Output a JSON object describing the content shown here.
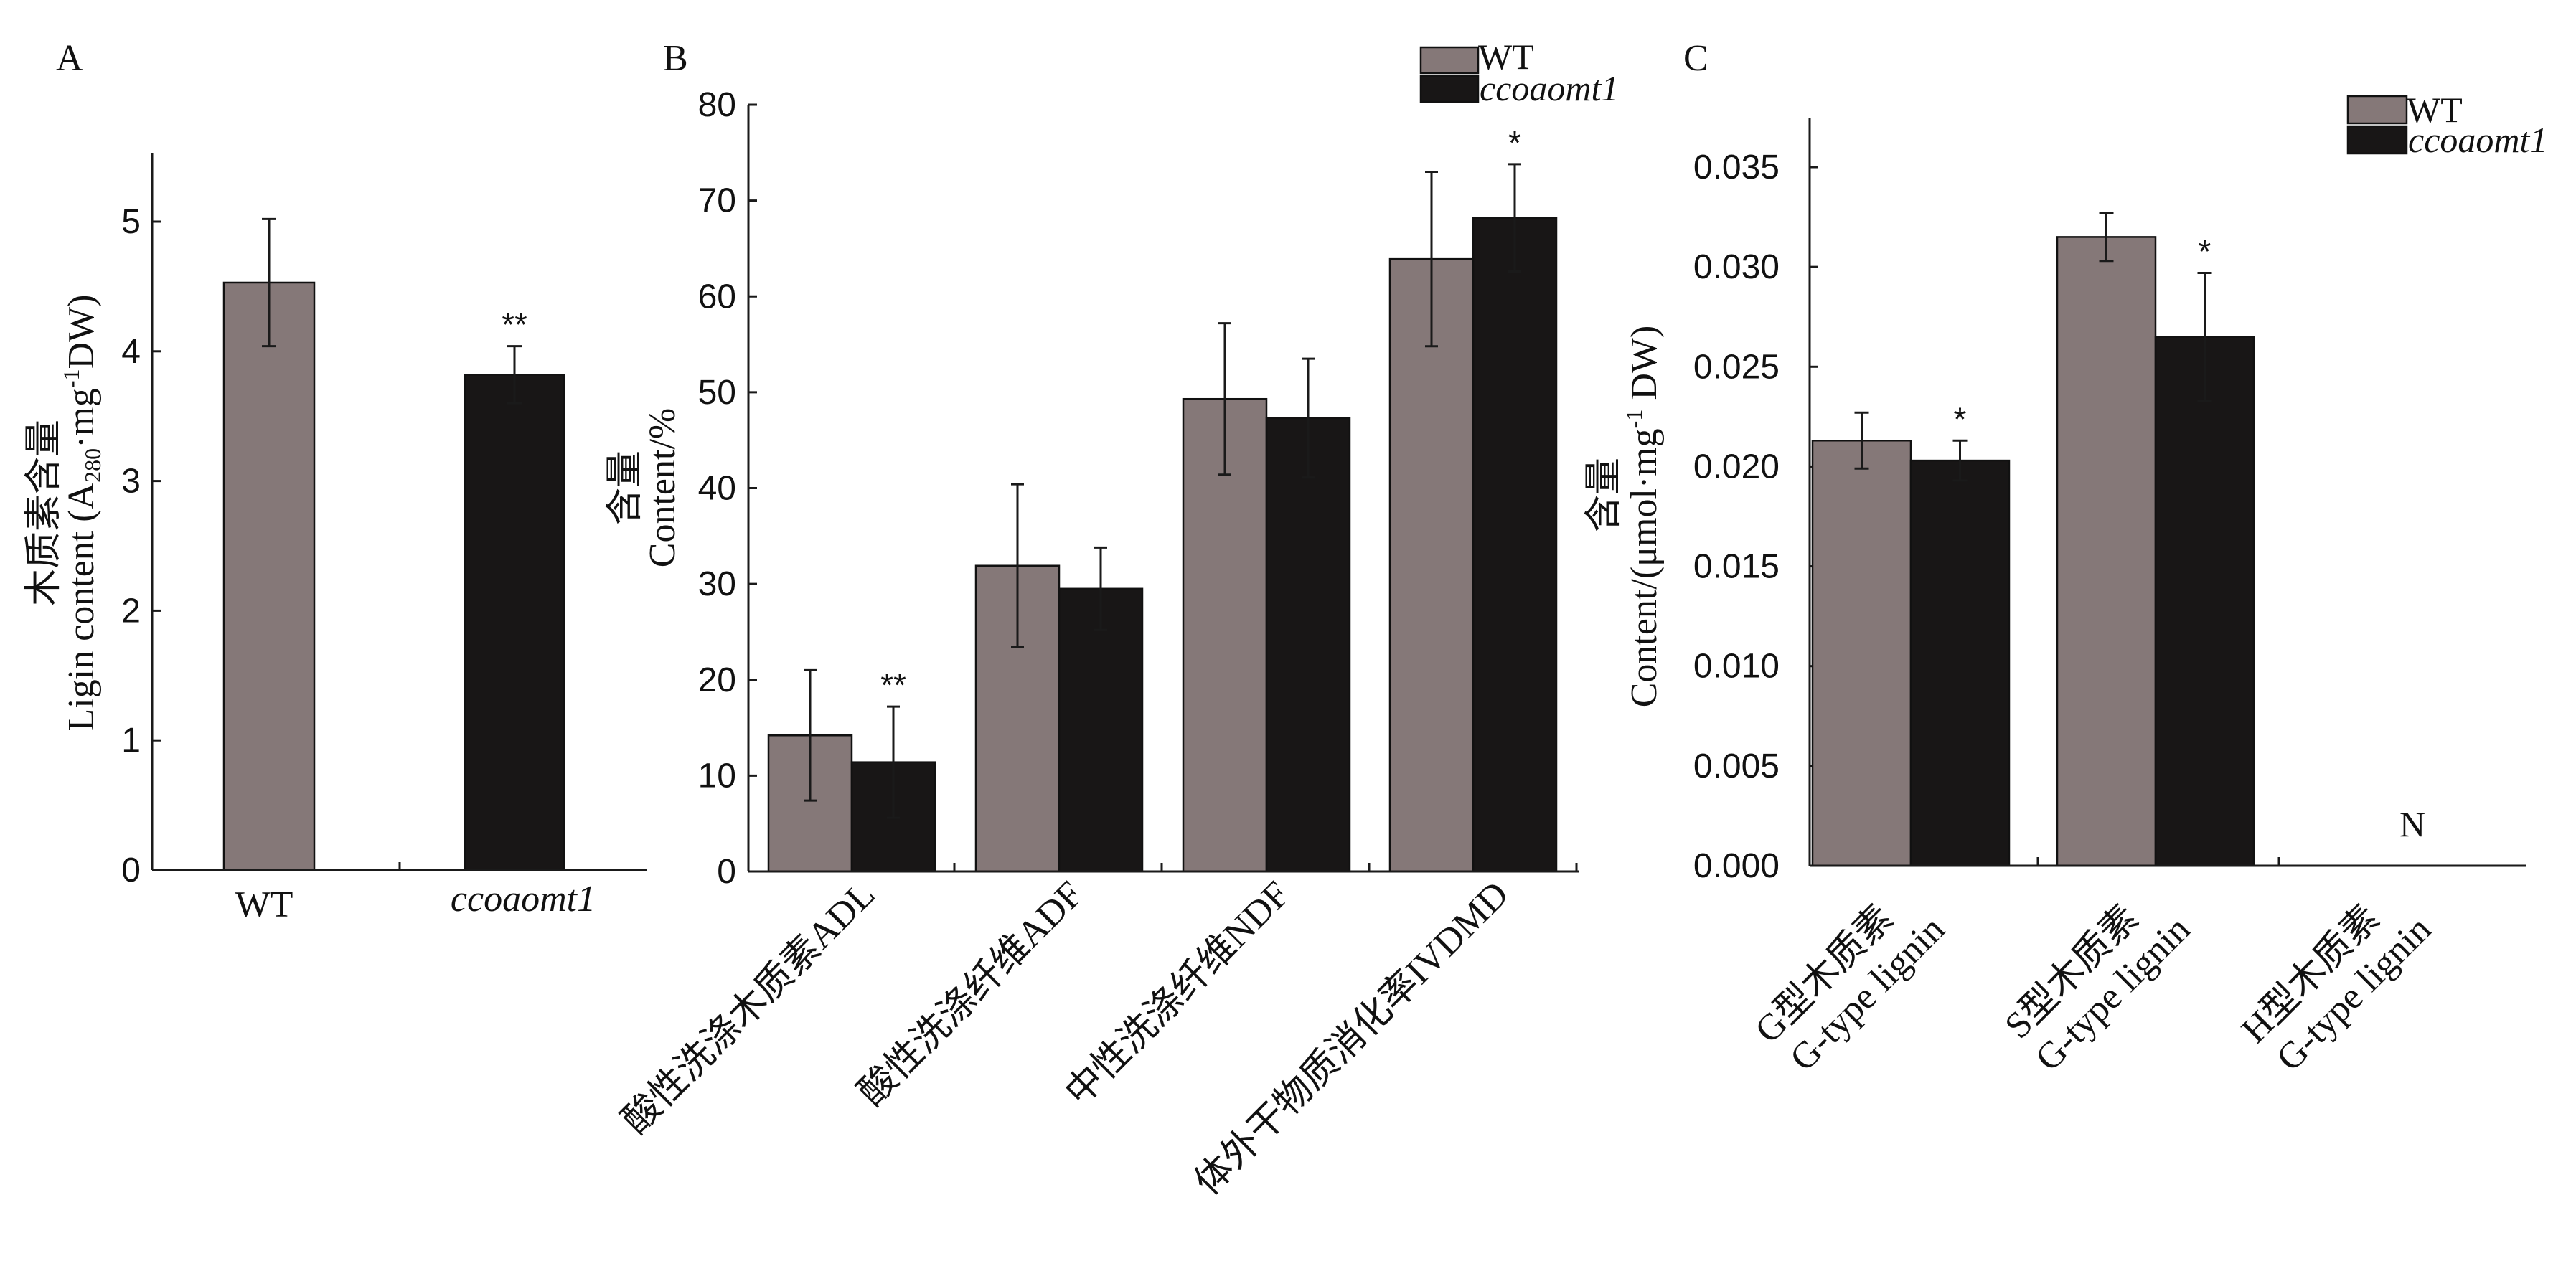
{
  "colors": {
    "wt": "#857878",
    "mutant": "#181616"
  },
  "chart_data": [
    {
      "panel": "A",
      "type": "bar",
      "categories": [
        "WT",
        "ccoaomt1"
      ],
      "values": [
        4.53,
        3.82
      ],
      "errors": [
        0.49,
        0.22
      ],
      "significance": [
        "",
        "**"
      ],
      "ylabel_cn": "木质素含量",
      "ylabel_en": "Ligin content (A",
      "ylabel_sub": "280",
      "ylabel_mid": "·mg",
      "ylabel_sup": "-1",
      "ylabel_end": "DW)",
      "ylim": [
        0,
        5.5
      ],
      "yticks": [
        "0",
        "1",
        "2",
        "3",
        "4",
        "5"
      ]
    },
    {
      "panel": "B",
      "type": "bar",
      "categories": [
        "酸性洗涤木质素ADL",
        "酸性洗涤纤维ADF",
        "中性洗涤纤维NDF",
        "体外干物质消化率IVDMD"
      ],
      "series": [
        {
          "name": "WT",
          "values": [
            14.2,
            31.9,
            49.3,
            63.9
          ],
          "errors": [
            6.8,
            8.5,
            7.9,
            9.1
          ],
          "significance": [
            "",
            "",
            "",
            ""
          ]
        },
        {
          "name": "ccoaomt1",
          "values": [
            11.4,
            29.5,
            47.3,
            68.2
          ],
          "errors": [
            5.8,
            4.3,
            6.2,
            5.6
          ],
          "significance": [
            "**",
            "",
            "",
            "*"
          ]
        }
      ],
      "ylabel_cn": "含量",
      "ylabel_en": "Content/%",
      "ylim": [
        0,
        80
      ],
      "yticks": [
        "0",
        "10",
        "20",
        "30",
        "40",
        "50",
        "60",
        "70",
        "80"
      ],
      "legend": "top-right"
    },
    {
      "panel": "C",
      "type": "bar",
      "categories": [
        {
          "cn": "G型木质素",
          "en": "G-type lignin"
        },
        {
          "cn": "S型木质素",
          "en": "G-type lignin"
        },
        {
          "cn": "H型木质素",
          "en": "G-type lignin"
        }
      ],
      "series": [
        {
          "name": "WT",
          "values": [
            0.0213,
            0.0315,
            null
          ],
          "errors": [
            0.0014,
            0.0012,
            null
          ],
          "significance": [
            "",
            "",
            ""
          ]
        },
        {
          "name": "ccoaomt1",
          "values": [
            0.0203,
            0.0265,
            null
          ],
          "errors": [
            0.001,
            0.0032,
            null
          ],
          "significance": [
            "*",
            "*",
            ""
          ]
        }
      ],
      "na_note": "N",
      "ylabel_cn": "含量",
      "ylabel_en": "Content/(μmol·mg",
      "ylabel_sup": "-1",
      "ylabel_end": " DW)",
      "ylim": [
        0,
        0.0375
      ],
      "yticks": [
        "0.000",
        "0.005",
        "0.010",
        "0.015",
        "0.020",
        "0.025",
        "0.030",
        "0.035"
      ],
      "legend": "top-right"
    }
  ]
}
